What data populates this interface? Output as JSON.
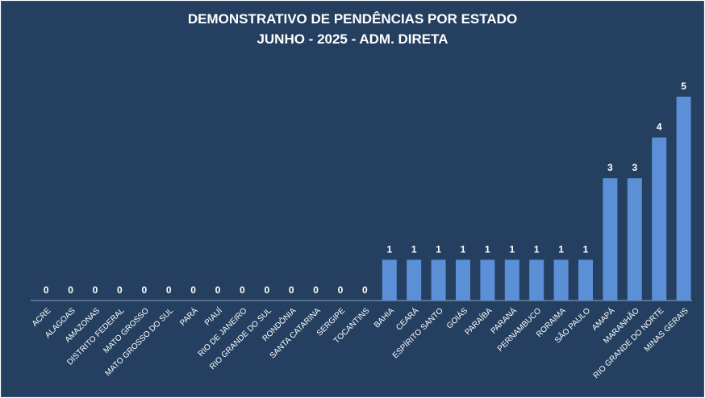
{
  "chart_data": {
    "type": "bar",
    "title": "DEMONSTRATIVO DE PENDÊNCIAS POR ESTADO",
    "subtitle": "JUNHO - 2025 - ADM. DIRETA",
    "categories": [
      "ACRE",
      "ALAGOAS",
      "AMAZONAS",
      "DISTRITO FEDERAL",
      "MATO GROSSO",
      "MATO GROSSO DO SUL",
      "PARÁ",
      "PIAUÍ",
      "RIO DE JANEIRO",
      "RIO GRANDE DO SUL",
      "RONDÔNIA",
      "SANTA CATARINA",
      "SERGIPE",
      "TOCANTINS",
      "BAHIA",
      "CEARÁ",
      "ESPÍRITO SANTO",
      "GOIÁS",
      "PARAÍBA",
      "PARANÁ",
      "PERNAMBUCO",
      "RORAIMA",
      "SÃO PAULO",
      "AMAPÁ",
      "MARANHÃO",
      "RIO GRANDE DO NORTE",
      "MINAS GERAIS"
    ],
    "values": [
      0,
      0,
      0,
      0,
      0,
      0,
      0,
      0,
      0,
      0,
      0,
      0,
      0,
      0,
      1,
      1,
      1,
      1,
      1,
      1,
      1,
      1,
      1,
      3,
      3,
      4,
      5
    ],
    "ylim": [
      0,
      5.5
    ],
    "grid": false,
    "legend": "none",
    "data_labels": true,
    "xlabel": "",
    "ylabel": ""
  },
  "colors": {
    "background": "#243f60",
    "bar": "#5b8fd6",
    "text": "#ffffff"
  }
}
